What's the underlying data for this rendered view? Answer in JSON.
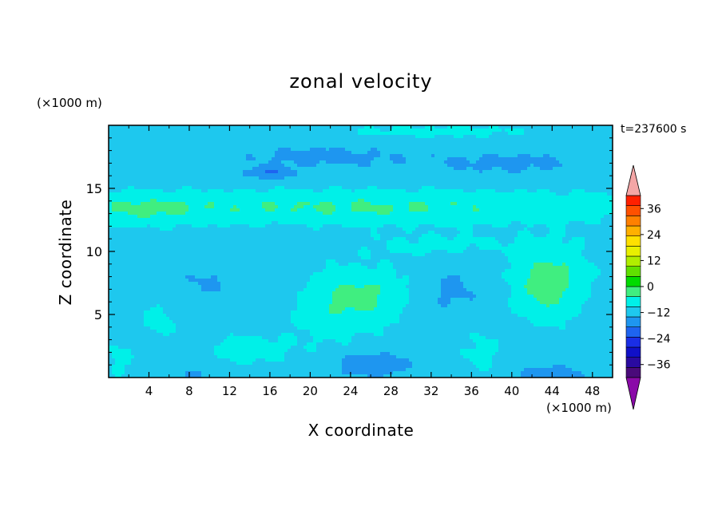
{
  "chart_data": {
    "type": "heatmap",
    "title": "zonal velocity",
    "xlabel": "X coordinate",
    "ylabel": "Z coordinate",
    "x_unit": "(×1000 m)",
    "z_unit": "(×1000 m)",
    "time_label": "t=237600 s",
    "xlim": [
      0,
      50
    ],
    "ylim": [
      0,
      20
    ],
    "x_ticks": [
      "4",
      "8",
      "12",
      "16",
      "20",
      "24",
      "28",
      "32",
      "36",
      "40",
      "44",
      "48"
    ],
    "y_ticks": [
      "5",
      "10",
      "15"
    ],
    "colorbar": {
      "min": -42,
      "max": 42,
      "step": 6,
      "tick_labels": [
        "36",
        "24",
        "12",
        "0",
        "-12",
        "-24",
        "-36"
      ],
      "extend": "both",
      "colors": [
        "#4a0a7a",
        "#2a0aa0",
        "#1010c8",
        "#1a2ee6",
        "#1e64f0",
        "#1e96f0",
        "#1ec8ee",
        "#00f0e8",
        "#40ee80",
        "#00dc00",
        "#60e000",
        "#b0ee00",
        "#e8f000",
        "#ffe000",
        "#ffb000",
        "#ff8000",
        "#ff5000",
        "#ff2000"
      ],
      "under_color": "#8a0aa8",
      "over_color": "#f4a6a6"
    },
    "features": [
      {
        "x": 25,
        "z": 13.5,
        "value": 9,
        "sx": 30,
        "sz": 1.3
      },
      {
        "x": 3,
        "z": 13.3,
        "value": 5,
        "sx": 6,
        "sz": 1.2
      },
      {
        "x": 25,
        "z": 6.4,
        "value": 10,
        "sx": 4.5,
        "sz": 2.2
      },
      {
        "x": 21,
        "z": 4.5,
        "value": 3,
        "sx": 4,
        "sz": 3
      },
      {
        "x": 44,
        "z": 8.2,
        "value": 10,
        "sx": 3.5,
        "sz": 2.5
      },
      {
        "x": 43,
        "z": 6,
        "value": 5,
        "sx": 3,
        "sz": 2
      },
      {
        "x": 14,
        "z": 2.2,
        "value": 6,
        "sx": 3.5,
        "sz": 1.1
      },
      {
        "x": 5,
        "z": 4.5,
        "value": 5,
        "sx": 1.6,
        "sz": 1.5
      },
      {
        "x": 1,
        "z": 1.5,
        "value": 4,
        "sx": 1.5,
        "sz": 1.5
      },
      {
        "x": 37,
        "z": 2,
        "value": 4,
        "sx": 2,
        "sz": 1.8
      },
      {
        "x": 33,
        "z": 10.5,
        "value": 4,
        "sx": 8,
        "sz": 1
      },
      {
        "x": 21,
        "z": 17.5,
        "value": -5,
        "sx": 9,
        "sz": 1
      },
      {
        "x": 16,
        "z": 16.2,
        "value": -9,
        "sx": 2.5,
        "sz": 0.5
      },
      {
        "x": 40,
        "z": 17,
        "value": -5,
        "sx": 9,
        "sz": 1
      },
      {
        "x": 10,
        "z": 7.5,
        "value": -4,
        "sx": 4,
        "sz": 1.5
      },
      {
        "x": 34,
        "z": 7,
        "value": -5,
        "sx": 3,
        "sz": 2
      },
      {
        "x": 26,
        "z": 1,
        "value": -8,
        "sx": 4,
        "sz": 1
      },
      {
        "x": 44,
        "z": 0.3,
        "value": -8,
        "sx": 3,
        "sz": 0.6
      },
      {
        "x": 9,
        "z": 0.3,
        "value": -4,
        "sx": 3,
        "sz": 0.6
      },
      {
        "x": 32,
        "z": 19.5,
        "value": 4,
        "sx": 12,
        "sz": 0.6
      }
    ]
  }
}
